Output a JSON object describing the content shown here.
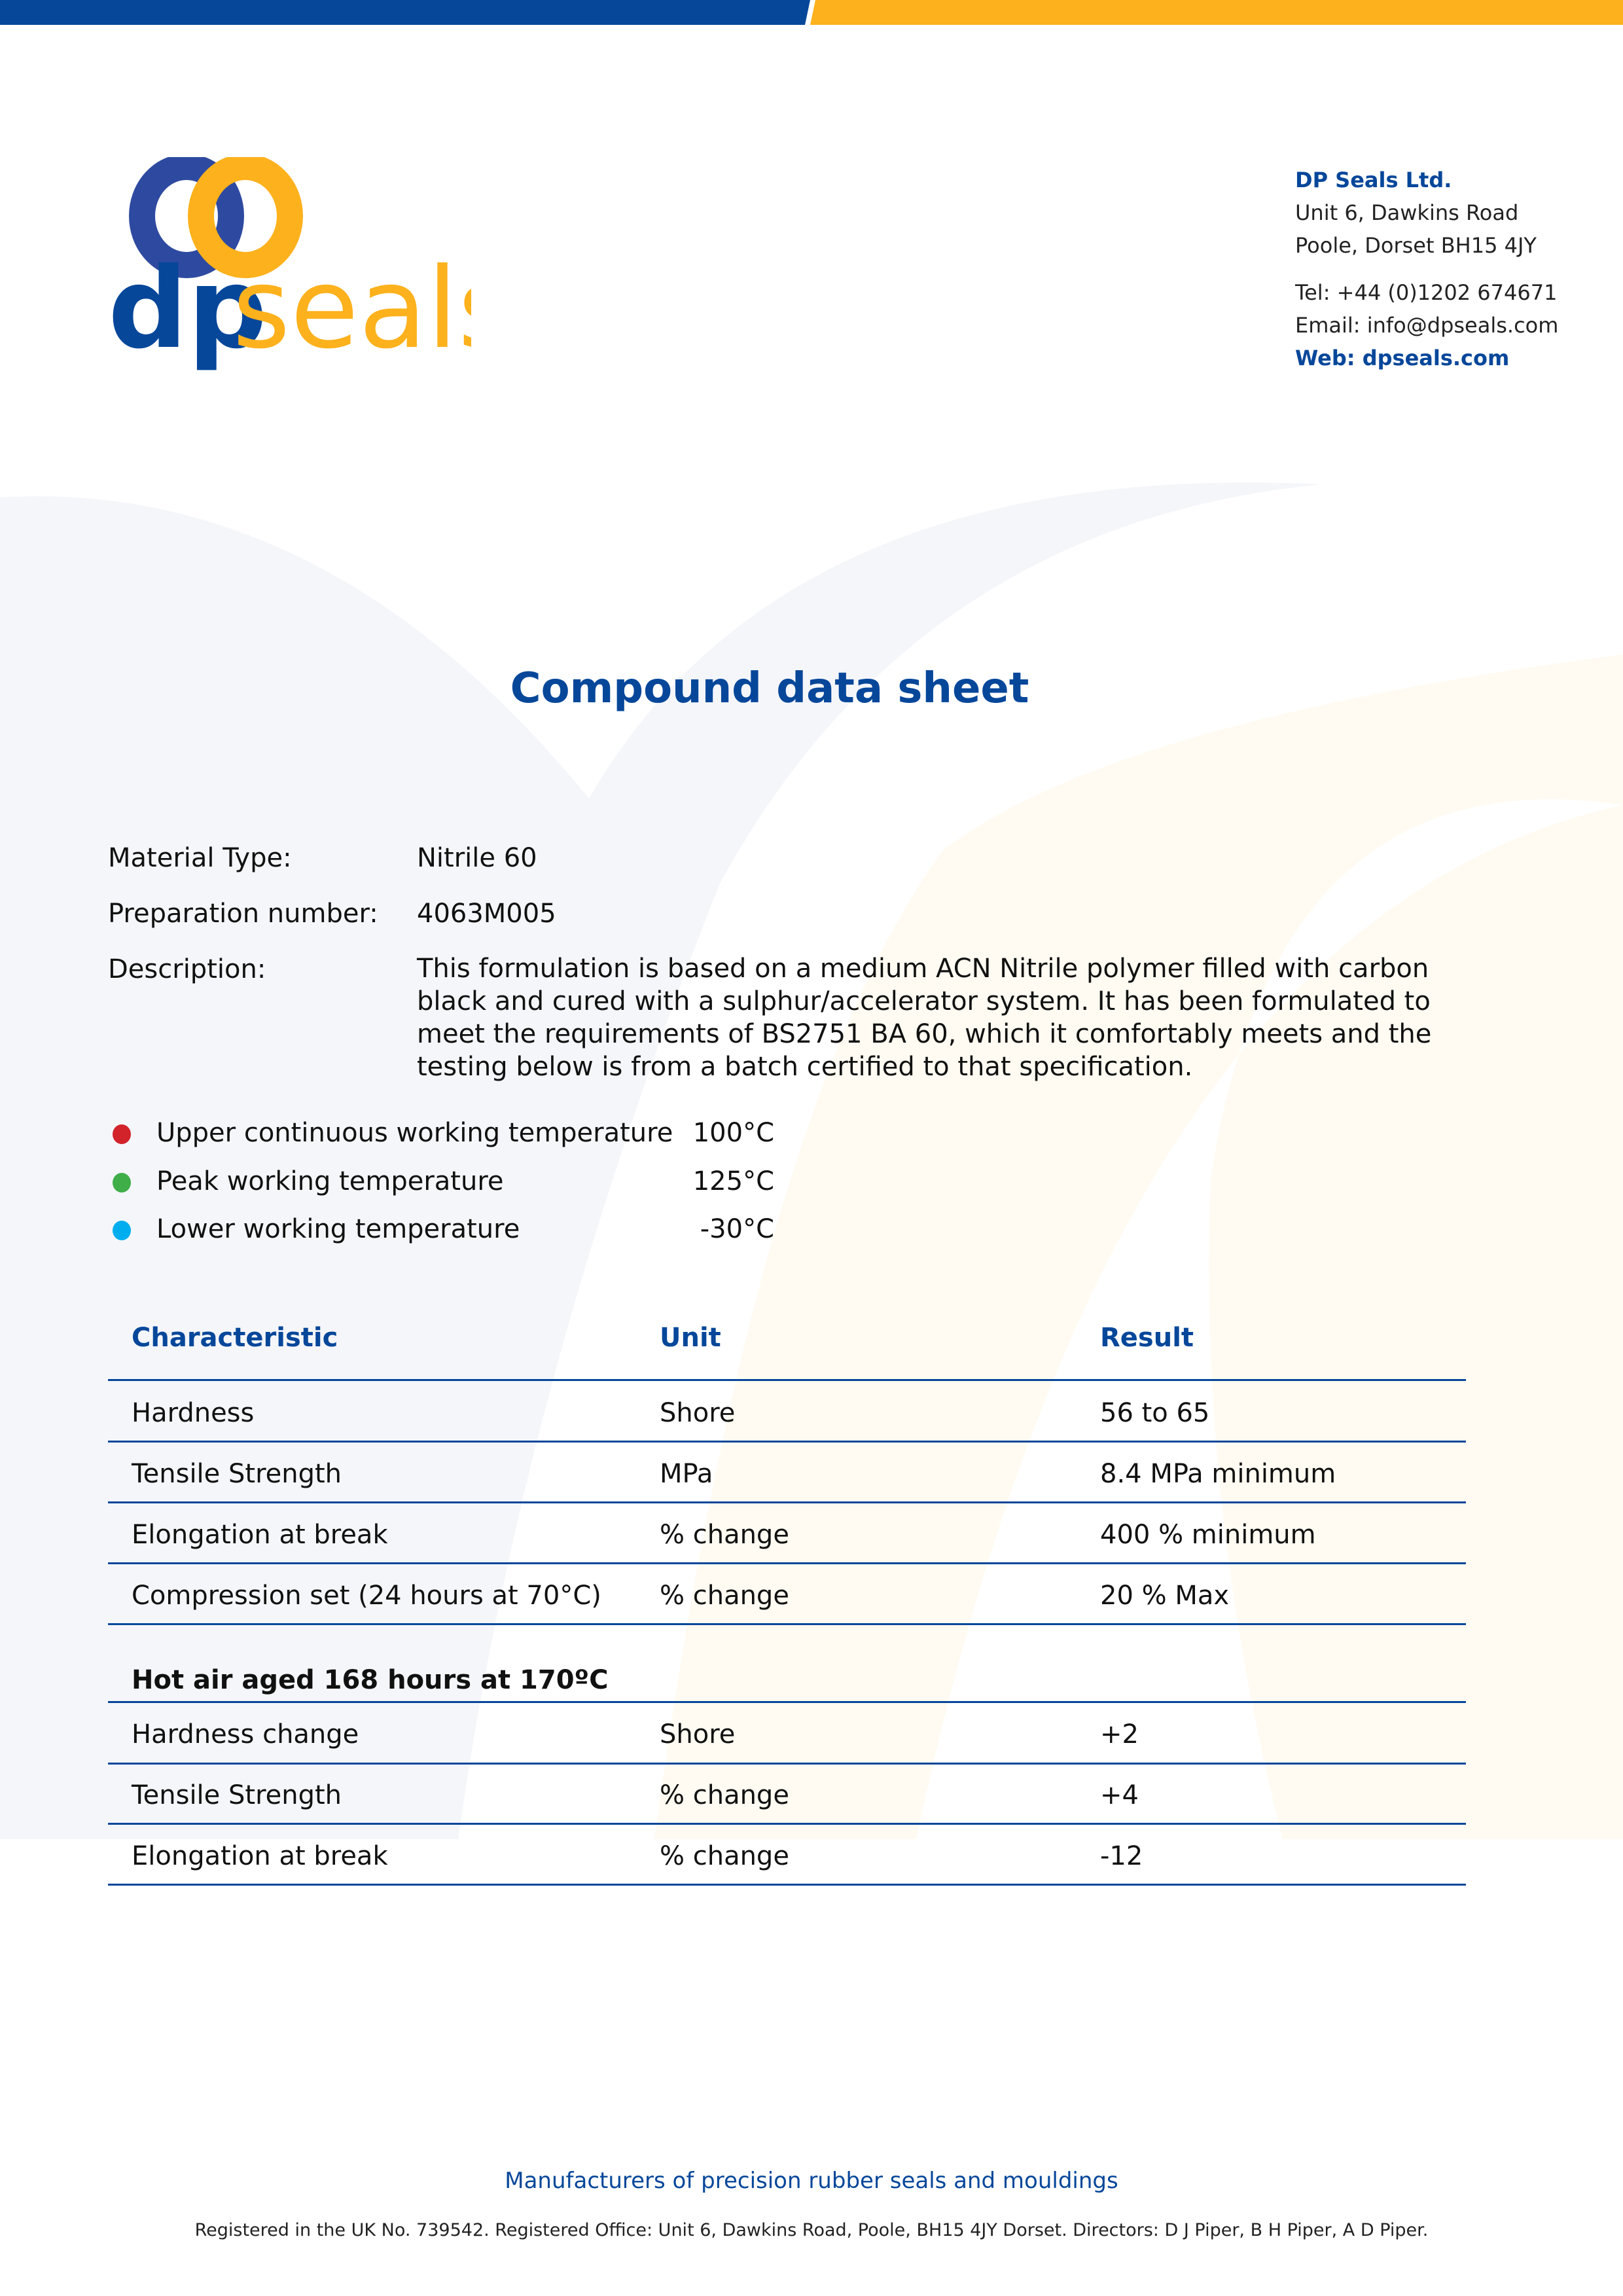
{
  "brand": {
    "logo_text_dp": "dp",
    "logo_text_seals": "seals",
    "blue": "#06479a",
    "yellow": "#fdb11c"
  },
  "address": {
    "company": "DP Seals Ltd.",
    "line1": "Unit 6, Dawkins Road",
    "line2": "Poole, Dorset BH15 4JY",
    "tel": "Tel: +44 (0)1202 674671",
    "email": "Email: info@dpseals.com",
    "web": "Web: dpseals.com"
  },
  "title": "Compound data sheet",
  "info": {
    "material_label": "Material Type:",
    "material_value": "Nitrile 60",
    "prep_label": "Preparation number:",
    "prep_value": "4063M005",
    "desc_label": "Description:",
    "desc_value": "This formulation is based on a medium ACN Nitrile polymer filled with carbon black and cured with a sulphur/accelerator system. It has been formulated to meet the requirements of BS2751 BA 60, which it comfortably meets and the testing below is from a batch certified to that specification."
  },
  "temperatures": [
    {
      "label": "Upper continuous working temperature",
      "value": "100°C",
      "color": "#d2232a"
    },
    {
      "label": "Peak working temperature",
      "value": "125°C",
      "color": "#3fae49"
    },
    {
      "label": "Lower working temperature",
      "value": "-30°C",
      "color": "#00aeef"
    }
  ],
  "table": {
    "headers": [
      "Characteristic",
      "Unit",
      "Result"
    ],
    "rows": [
      [
        "Hardness",
        "Shore",
        "56 to 65"
      ],
      [
        "Tensile Strength",
        "MPa",
        "8.4 MPa minimum"
      ],
      [
        "Elongation at break",
        "% change",
        "400 % minimum"
      ],
      [
        "Compression set (24 hours at 70°C)",
        "% change",
        "20 % Max"
      ]
    ],
    "section_heading": "Hot air aged 168 hours at 170ºC",
    "section_rows": [
      [
        "Hardness change",
        "Shore",
        "+2"
      ],
      [
        "Tensile Strength",
        "% change",
        "+4"
      ],
      [
        "Elongation at break",
        "% change",
        "-12"
      ]
    ]
  },
  "footer": {
    "tagline": "Manufacturers of precision rubber seals and mouldings",
    "registered": "Registered in the UK No. 739542. Registered Office: Unit 6, Dawkins Road, Poole, BH15 4JY Dorset. Directors: D J Piper, B H Piper, A D Piper."
  }
}
